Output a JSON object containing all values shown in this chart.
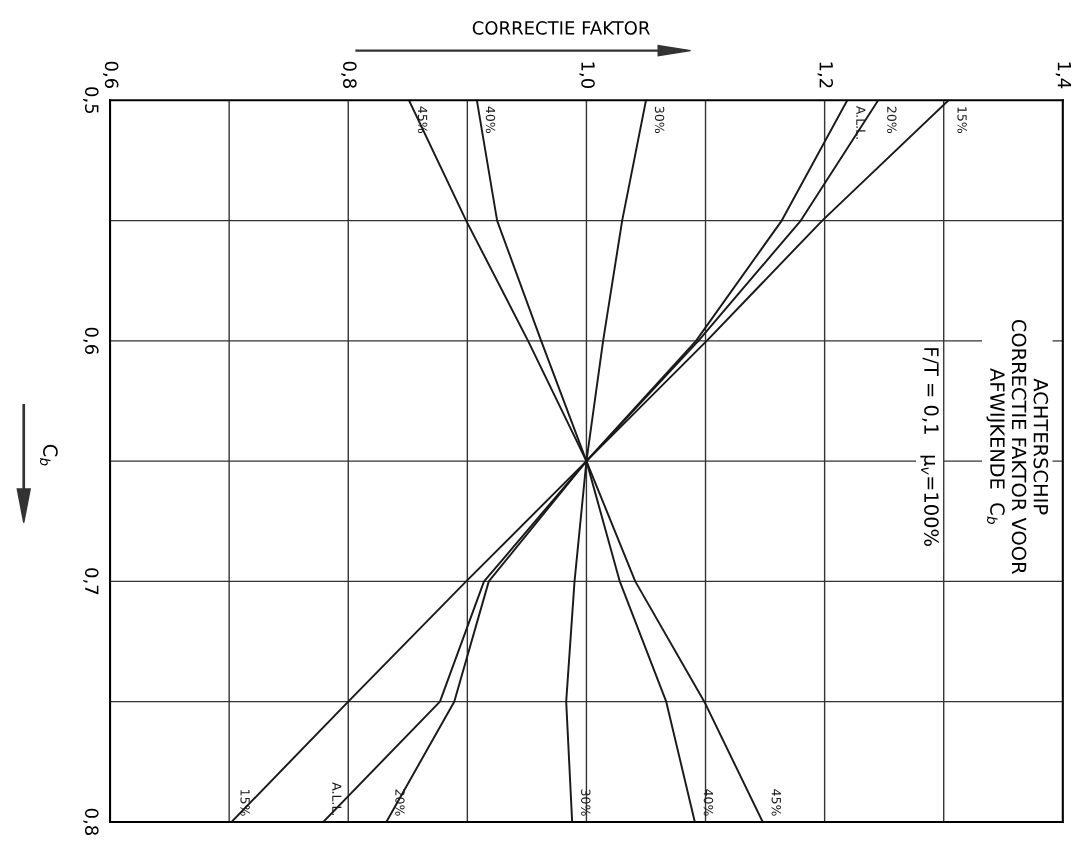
{
  "chart_data": {
    "type": "line",
    "title": "ACHTERSCHIP\nCORRECTIE FAKTOR VOOR\nAFWIJKENDE  C$_{b}$",
    "subtitle": "F/T = 0,1   μ$_{v}$=100%",
    "xlabel": "CORRECTIE FAKTOR",
    "ylabel": "C$_{b}$",
    "xlim": [
      0.6,
      1.4
    ],
    "ylim": [
      0.8,
      0.5
    ],
    "xticks": [
      {
        "value": 0.6,
        "label": "0,6"
      },
      {
        "value": 0.7,
        "label": null
      },
      {
        "value": 0.8,
        "label": "0,8"
      },
      {
        "value": 0.9,
        "label": null
      },
      {
        "value": 1.0,
        "label": "1,0"
      },
      {
        "value": 1.1,
        "label": null
      },
      {
        "value": 1.2,
        "label": "1,2"
      },
      {
        "value": 1.3,
        "label": null
      },
      {
        "value": 1.4,
        "label": "1,4"
      }
    ],
    "yticks": [
      {
        "value": 0.5,
        "label": "0,5"
      },
      {
        "value": 0.55,
        "label": null
      },
      {
        "value": 0.6,
        "label": "0,6"
      },
      {
        "value": 0.65,
        "label": null
      },
      {
        "value": 0.7,
        "label": "0,7"
      },
      {
        "value": 0.75,
        "label": null
      },
      {
        "value": 0.8,
        "label": "0,8"
      }
    ],
    "grid": true,
    "marker": "none",
    "line_style": "solid",
    "series": [
      {
        "name": "45%",
        "color": "#1a1a1a",
        "x": [
          0.851,
          0.899,
          0.951,
          1.0,
          1.041,
          1.099,
          1.148
        ],
        "values": [
          0.5,
          0.55,
          0.6,
          0.65,
          0.7,
          0.75,
          0.8
        ]
      },
      {
        "name": "40%",
        "color": "#1a1a1a",
        "x": [
          0.908,
          0.925,
          0.962,
          1.0,
          1.028,
          1.067,
          1.091
        ],
        "values": [
          0.5,
          0.55,
          0.6,
          0.65,
          0.7,
          0.75,
          0.8
        ]
      },
      {
        "name": "30%",
        "color": "#1a1a1a",
        "x": [
          1.05,
          1.03,
          1.014,
          1.0,
          0.99,
          0.983,
          0.988
        ],
        "values": [
          0.5,
          0.55,
          0.6,
          0.65,
          0.7,
          0.75,
          0.8
        ]
      },
      {
        "name": "A.L.L.",
        "color": "#1a1a1a",
        "x": [
          1.219,
          1.164,
          1.092,
          1.0,
          0.914,
          0.877,
          0.779
        ],
        "values": [
          0.5,
          0.55,
          0.6,
          0.65,
          0.7,
          0.75,
          0.8
        ]
      },
      {
        "name": "20%",
        "color": "#1a1a1a",
        "x": [
          1.245,
          1.18,
          1.094,
          1.0,
          0.918,
          0.889,
          0.832
        ],
        "values": [
          0.5,
          0.55,
          0.6,
          0.65,
          0.7,
          0.75,
          0.8
        ]
      },
      {
        "name": "15%",
        "color": "#1a1a1a",
        "x": [
          1.304,
          1.198,
          1.101,
          1.0,
          0.899,
          0.8,
          0.702
        ],
        "values": [
          0.5,
          0.55,
          0.6,
          0.65,
          0.7,
          0.75,
          0.8
        ]
      }
    ]
  }
}
